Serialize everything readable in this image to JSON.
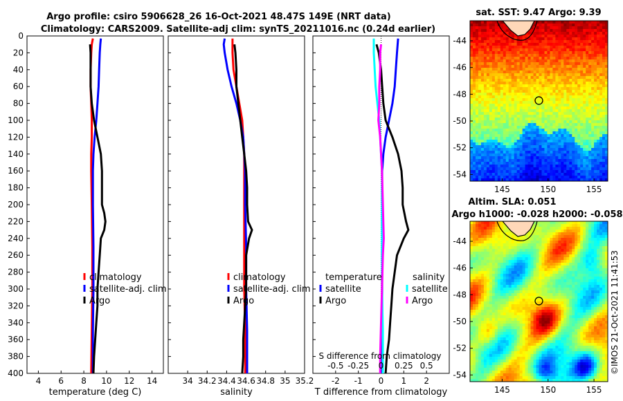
{
  "title_lines": [
    "Argo profile: csiro 5906628_26 16-Oct-2021 48.47S 149E (NRT data)",
    "Climatology: CARS2009. Satellite-adj clim: synTS_20211016.nc (0.24d earlier)"
  ],
  "copyright": "©IMOS 21-Oct-2021 11:41:53",
  "colors": {
    "climatology": "#ff0000",
    "satellite": "#0000ff",
    "argo": "#000000",
    "sat_salinity": "#00ffff",
    "argo_salinity": "#ff00ff"
  },
  "chart_data": [
    {
      "type": "line",
      "id": "temperature",
      "xlabel": "temperature (deg C)",
      "ylabel": "depth",
      "xlim": [
        3,
        15
      ],
      "ylim": [
        0,
        400
      ],
      "xticks": [
        4,
        6,
        8,
        10,
        12,
        14
      ],
      "xtick_labels": [
        "4",
        "6",
        "8",
        "10",
        "12",
        "14"
      ],
      "yticks": [
        0,
        20,
        40,
        60,
        80,
        100,
        120,
        140,
        160,
        180,
        200,
        220,
        240,
        260,
        280,
        300,
        320,
        340,
        360,
        380,
        400
      ],
      "ytick_labels": [
        "0",
        "20",
        "40",
        "60",
        "80",
        "100",
        "120",
        "140",
        "160",
        "180",
        "200",
        "220",
        "240",
        "260",
        "280",
        "300",
        "320",
        "340",
        "360",
        "380",
        "400"
      ],
      "legend": [
        "climatology",
        "satellite-adj. clim",
        "Argo"
      ],
      "series": [
        {
          "name": "climatology",
          "color": "#ff0000",
          "depth": [
            3,
            10,
            20,
            40,
            60,
            80,
            100,
            120,
            140,
            160,
            200,
            250,
            300,
            350,
            400
          ],
          "values": [
            8.8,
            8.7,
            8.65,
            8.6,
            8.6,
            8.65,
            8.7,
            8.7,
            8.65,
            8.65,
            8.7,
            8.75,
            8.75,
            8.7,
            8.65
          ]
        },
        {
          "name": "satellite-adj. clim",
          "color": "#0000ff",
          "depth": [
            3,
            10,
            20,
            40,
            60,
            70,
            80,
            100,
            120,
            140,
            160,
            200,
            250,
            300,
            350,
            400
          ],
          "values": [
            9.5,
            9.45,
            9.4,
            9.35,
            9.3,
            9.25,
            9.2,
            9.1,
            8.95,
            8.85,
            8.8,
            8.8,
            8.85,
            8.85,
            8.8,
            8.8
          ]
        },
        {
          "name": "Argo",
          "color": "#000000",
          "depth": [
            10,
            20,
            40,
            60,
            80,
            100,
            120,
            140,
            160,
            180,
            200,
            210,
            220,
            230,
            240,
            260,
            280,
            300,
            320,
            340,
            360,
            380,
            400
          ],
          "values": [
            8.55,
            8.6,
            8.6,
            8.6,
            8.7,
            8.9,
            9.2,
            9.5,
            9.6,
            9.6,
            9.6,
            9.8,
            9.9,
            9.8,
            9.5,
            9.4,
            9.3,
            9.2,
            9.2,
            9.1,
            9.0,
            8.9,
            8.85
          ]
        }
      ]
    },
    {
      "type": "line",
      "id": "salinity",
      "xlabel": "salinity",
      "xlim": [
        33.8,
        35.2
      ],
      "ylim": [
        0,
        400
      ],
      "xticks": [
        34,
        34.2,
        34.4,
        34.6,
        34.8,
        35,
        35.2
      ],
      "xtick_labels": [
        "34",
        "34.2",
        "34.4",
        "34.6",
        "34.8",
        "35",
        "35.2"
      ],
      "legend": [
        "climatology",
        "satellite-adj. clim",
        "Argo"
      ],
      "series": [
        {
          "name": "climatology",
          "color": "#ff0000",
          "depth": [
            3,
            20,
            40,
            60,
            80,
            100,
            120,
            140,
            160,
            200,
            250,
            300,
            350,
            400
          ],
          "values": [
            34.46,
            34.46,
            34.47,
            34.5,
            34.53,
            34.56,
            34.57,
            34.58,
            34.58,
            34.58,
            34.58,
            34.58,
            34.59,
            34.59
          ]
        },
        {
          "name": "satellite-adj. clim",
          "color": "#0000ff",
          "depth": [
            3,
            10,
            20,
            40,
            60,
            80,
            100,
            120,
            140,
            160,
            200,
            250,
            300,
            350,
            400
          ],
          "values": [
            34.38,
            34.37,
            34.38,
            34.41,
            34.45,
            34.5,
            34.54,
            34.57,
            34.58,
            34.59,
            34.59,
            34.6,
            34.6,
            34.61,
            34.61
          ]
        },
        {
          "name": "Argo",
          "color": "#000000",
          "depth": [
            10,
            20,
            40,
            60,
            80,
            100,
            120,
            140,
            160,
            180,
            200,
            220,
            230,
            240,
            260,
            280,
            300,
            320,
            340,
            360,
            380,
            400
          ],
          "values": [
            34.48,
            34.49,
            34.5,
            34.5,
            34.52,
            34.54,
            34.56,
            34.58,
            34.6,
            34.61,
            34.61,
            34.62,
            34.66,
            34.63,
            34.6,
            34.6,
            34.6,
            34.59,
            34.58,
            34.57,
            34.57,
            34.56
          ]
        }
      ]
    },
    {
      "type": "line",
      "id": "difference",
      "xlabel": "T difference from climatology",
      "top_label": "S difference from climatology",
      "xlim": [
        -3,
        3
      ],
      "ylim": [
        0,
        400
      ],
      "xticks": [
        -2,
        -1,
        0,
        1,
        2
      ],
      "xtick_labels": [
        "-2",
        "-1",
        "0",
        "1",
        "2"
      ],
      "top_ticks": [
        -0.5,
        -0.25,
        0,
        0.25,
        0.5
      ],
      "top_tick_labels": [
        "-0.5",
        "-0.25",
        "0",
        "0.25",
        "0.5"
      ],
      "legend_titles": [
        "temperature",
        "salinity"
      ],
      "legend": [
        "satellite",
        "Argo",
        "satellite",
        "Argo"
      ],
      "series": [
        {
          "name": "T satellite",
          "color": "#0000ff",
          "depth": [
            3,
            20,
            40,
            60,
            80,
            100,
            120,
            140,
            160,
            200,
            250,
            300,
            350,
            400
          ],
          "values": [
            0.75,
            0.7,
            0.65,
            0.6,
            0.5,
            0.35,
            0.2,
            0.1,
            0.05,
            0.05,
            0.05,
            0.05,
            0.05,
            0.05
          ]
        },
        {
          "name": "T Argo",
          "color": "#000000",
          "depth": [
            10,
            20,
            40,
            60,
            80,
            100,
            120,
            140,
            160,
            180,
            200,
            220,
            230,
            240,
            260,
            280,
            300,
            320,
            340,
            360,
            380,
            400
          ],
          "values": [
            -0.2,
            -0.1,
            0.0,
            0.05,
            0.1,
            0.2,
            0.5,
            0.75,
            0.9,
            0.95,
            0.95,
            1.1,
            1.2,
            1.0,
            0.7,
            0.6,
            0.5,
            0.45,
            0.4,
            0.35,
            0.25,
            0.2
          ]
        },
        {
          "name": "S satellite",
          "color": "#00ffff",
          "depth": [
            3,
            20,
            40,
            60,
            80,
            100,
            120,
            140,
            160,
            200,
            250,
            300,
            350,
            400
          ],
          "values": [
            -0.08,
            -0.08,
            -0.07,
            -0.06,
            -0.04,
            -0.02,
            -0.01,
            0.0,
            0.01,
            0.01,
            0.01,
            0.01,
            0.02,
            0.02
          ]
        },
        {
          "name": "S Argo",
          "color": "#ff00ff",
          "depth": [
            10,
            20,
            40,
            60,
            80,
            100,
            120,
            140,
            160,
            200,
            240,
            260,
            300,
            340,
            380,
            400
          ],
          "values": [
            0.0,
            -0.01,
            -0.01,
            -0.02,
            -0.02,
            -0.03,
            -0.01,
            0.0,
            0.01,
            0.02,
            0.03,
            0.02,
            0.01,
            0.0,
            -0.01,
            -0.01
          ]
        }
      ]
    },
    {
      "type": "heatmap",
      "id": "sst_map",
      "title": "sat. SST: 9.47 Argo: 9.39",
      "xlim": [
        141.5,
        156.5
      ],
      "ylim": [
        -54.5,
        -42.5
      ],
      "xticks": [
        145,
        150,
        155
      ],
      "xtick_labels": [
        "145",
        "150",
        "155"
      ],
      "yticks": [
        -44,
        -46,
        -48,
        -50,
        -52,
        -54
      ],
      "ytick_labels": [
        "-44",
        "-46",
        "-48",
        "-50",
        "-52",
        "-54"
      ],
      "argo_position": {
        "lon": 149,
        "lat": -48.47
      }
    },
    {
      "type": "heatmap",
      "id": "sla_map",
      "title_lines": [
        "Altim. SLA: 0.051",
        "Argo h1000: -0.028 h2000: -0.058"
      ],
      "xlim": [
        141.5,
        156.5
      ],
      "ylim": [
        -54.5,
        -42.5
      ],
      "xticks": [
        145,
        150,
        155
      ],
      "xtick_labels": [
        "145",
        "150",
        "155"
      ],
      "yticks": [
        -44,
        -46,
        -48,
        -50,
        -52,
        -54
      ],
      "ytick_labels": [
        "-44",
        "-46",
        "-48",
        "-50",
        "-52",
        "-54"
      ],
      "argo_position": {
        "lon": 149,
        "lat": -48.47
      }
    }
  ]
}
